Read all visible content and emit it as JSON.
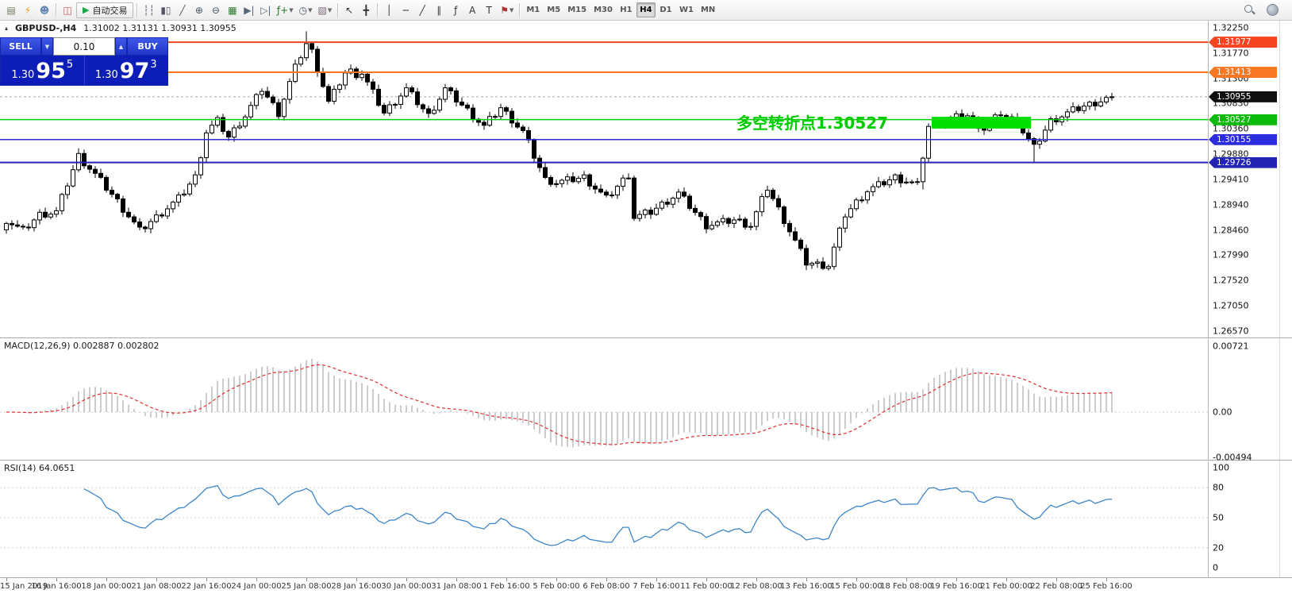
{
  "toolbar": {
    "buttons": [
      {
        "name": "new-order",
        "glyph": "▤",
        "color": "#6b7b5a"
      },
      {
        "name": "metaeditor",
        "glyph": "⚡",
        "color": "#e8a013"
      },
      {
        "name": "profiles",
        "glyph": "☻",
        "color": "#6a87b8"
      },
      {
        "sep": true
      },
      {
        "name": "market-watch",
        "glyph": "◫",
        "color": "#c05050"
      },
      {
        "name": "autotrading",
        "glyph": "▶",
        "label": "自动交易",
        "color": "#18a848"
      },
      {
        "sep": true
      },
      {
        "name": "chart-bars",
        "glyph": "┆┆",
        "color": "#556"
      },
      {
        "name": "chart-candles",
        "glyph": "▮▯",
        "color": "#556"
      },
      {
        "name": "chart-line",
        "glyph": "╱",
        "color": "#556"
      },
      {
        "name": "zoom-in",
        "glyph": "⊕",
        "color": "#456"
      },
      {
        "name": "zoom-out",
        "glyph": "⊖",
        "color": "#456"
      },
      {
        "name": "tile-windows",
        "glyph": "▦",
        "color": "#2f7a2f"
      },
      {
        "name": "auto-scroll",
        "glyph": "▶|",
        "color": "#567"
      },
      {
        "name": "chart-shift",
        "glyph": "▷|",
        "color": "#567"
      },
      {
        "name": "indicators",
        "glyph": "ƒ+",
        "color": "#1a7a1a",
        "caret": true
      },
      {
        "name": "periods",
        "glyph": "◷",
        "color": "#456",
        "caret": true
      },
      {
        "name": "templates",
        "glyph": "▧",
        "color": "#767",
        "caret": true
      },
      {
        "sep": true
      },
      {
        "name": "cursor",
        "glyph": "↖",
        "color": "#333"
      },
      {
        "name": "crosshair",
        "glyph": "╋",
        "color": "#333"
      },
      {
        "sep": true
      },
      {
        "name": "vertical-line",
        "glyph": "│",
        "color": "#333"
      },
      {
        "name": "horizontal-line",
        "glyph": "─",
        "color": "#333"
      },
      {
        "name": "trendline",
        "glyph": "╱",
        "color": "#333"
      },
      {
        "name": "equidistant-channel",
        "glyph": "∥",
        "color": "#333"
      },
      {
        "name": "fibonacci",
        "glyph": "ƒ",
        "color": "#333"
      },
      {
        "name": "text",
        "glyph": "A",
        "color": "#333"
      },
      {
        "name": "text-label",
        "glyph": "T",
        "color": "#333"
      },
      {
        "name": "arrows",
        "glyph": "⚑",
        "color": "#a33",
        "caret": true
      },
      {
        "sep": true
      }
    ],
    "timeframes": [
      "M1",
      "M5",
      "M15",
      "M30",
      "H1",
      "H4",
      "D1",
      "W1",
      "MN"
    ],
    "active_timeframe": "H4"
  },
  "chart_header": {
    "symbol": "GBPUSD-,H4",
    "ohlc": "1.31002 1.31131 1.30931 1.30955",
    "toggle_icon": "▴"
  },
  "trade_panel": {
    "sell_label": "SELL",
    "buy_label": "BUY",
    "volume": "0.10",
    "step_down_icon": "▼",
    "step_up_icon": "▲",
    "sell_price": {
      "prefix": "1.30",
      "big": "95",
      "sup": "5"
    },
    "buy_price": {
      "prefix": "1.30",
      "big": "97",
      "sup": "3"
    }
  },
  "annotation": {
    "text": "多空转折点1.30527",
    "color": "#00cc00"
  },
  "price_axis": {
    "labels": [
      "1.32250",
      "1.31770",
      "1.31300",
      "1.30830",
      "1.30360",
      "1.29880",
      "1.29410",
      "1.28940",
      "1.28460",
      "1.27990",
      "1.27520",
      "1.27050",
      "1.26570"
    ],
    "tags": [
      {
        "value": "1.31977",
        "price": 1.31977,
        "bg": "#f44422"
      },
      {
        "value": "1.31413",
        "price": 1.31413,
        "bg": "#f87722"
      },
      {
        "value": "1.30955",
        "price": 1.30955,
        "bg": "#101010"
      },
      {
        "value": "1.30527",
        "price": 1.30527,
        "bg": "#0cbb0c"
      },
      {
        "value": "1.30155",
        "price": 1.30155,
        "bg": "#2b2bdf"
      },
      {
        "value": "1.29726",
        "price": 1.29726,
        "bg": "#2323b4"
      }
    ]
  },
  "macd": {
    "label": "MACD(12,26,9) 0.002887 0.002802",
    "params": [
      12,
      26,
      9
    ],
    "values": [
      "0.002887",
      "0.002802"
    ],
    "axis": [
      {
        "value": "0.00721",
        "v": 0.00721
      },
      {
        "value": "0.00",
        "v": 0
      },
      {
        "value": "-0.00494",
        "v": -0.00494
      }
    ],
    "hist_color": "#b6b6b6",
    "signal_color": "#e03030"
  },
  "rsi": {
    "label": "RSI(14) 64.0651",
    "period": 14,
    "value": "64.0651",
    "axis": [
      {
        "value": "100",
        "v": 100
      },
      {
        "value": "80",
        "v": 80
      },
      {
        "value": "50",
        "v": 50
      },
      {
        "value": "20",
        "v": 20
      },
      {
        "value": "0",
        "v": 0
      }
    ],
    "levels": [
      80,
      50,
      20
    ],
    "line_color": "#3d85c8"
  },
  "chart_data": {
    "type": "candlestick",
    "symbol": "GBPUSD",
    "timeframe": "H4",
    "price_top": 1.3235,
    "price_bottom": 1.2648,
    "closes": [
      1.2865,
      1.2858,
      1.2851,
      1.2845,
      1.2855,
      1.2865,
      1.2875,
      1.2877,
      1.2878,
      1.288,
      1.2906,
      1.2933,
      1.2959,
      1.2985,
      1.2973,
      1.2962,
      1.295,
      1.2938,
      1.2925,
      1.2913,
      1.29,
      1.2886,
      1.2873,
      1.2859,
      1.2845,
      1.2853,
      1.2862,
      1.287,
      1.2879,
      1.2888,
      1.2896,
      1.2905,
      1.2918,
      1.2932,
      1.2945,
      1.2988,
      1.303,
      1.304,
      1.305,
      1.3035,
      1.302,
      1.3033,
      1.3047,
      1.306,
      1.3077,
      1.3093,
      1.311,
      1.3095,
      1.308,
      1.3065,
      1.3093,
      1.3122,
      1.315,
      1.3173,
      1.3195,
      1.318,
      1.3148,
      1.3117,
      1.3085,
      1.3103,
      1.3122,
      1.314,
      1.3143,
      1.3138,
      1.314,
      1.3121,
      1.3103,
      1.3084,
      1.3065,
      1.3076,
      1.3088,
      1.3099,
      1.311,
      1.3098,
      1.3085,
      1.3073,
      1.306,
      1.3077,
      1.3093,
      1.311,
      1.31,
      1.309,
      1.308,
      1.307,
      1.306,
      1.305,
      1.304,
      1.3052,
      1.3063,
      1.3075,
      1.3064,
      1.3053,
      1.3041,
      1.303,
      1.3008,
      1.2985,
      1.2963,
      1.294,
      1.2938,
      1.2935,
      1.2937,
      1.2939,
      1.2941,
      1.2943,
      1.2945,
      1.2935,
      1.2925,
      1.2915,
      1.2905,
      1.2916,
      1.2928,
      1.2939,
      1.295,
      1.287,
      1.2873,
      1.2877,
      1.288,
      1.2887,
      1.2894,
      1.2901,
      1.2908,
      1.2915,
      1.2903,
      1.2891,
      1.2879,
      1.2867,
      1.2855,
      1.2857,
      1.2859,
      1.2861,
      1.2863,
      1.2865,
      1.2862,
      1.2858,
      1.2855,
      1.2878,
      1.2902,
      1.2925,
      1.2905,
      1.2885,
      1.2865,
      1.2845,
      1.2825,
      1.2805,
      1.2785,
      1.2784,
      1.2782,
      1.2781,
      1.278,
      1.2812,
      1.2843,
      1.2875,
      1.2886,
      1.2898,
      1.2909,
      1.292,
      1.2925,
      1.293,
      1.2935,
      1.294,
      1.2945,
      1.2941,
      1.2938,
      1.2934,
      1.293,
      1.2985,
      1.304,
      1.3044,
      1.3048,
      1.3051,
      1.3055,
      1.3057,
      1.3058,
      1.306,
      1.3052,
      1.3043,
      1.3035,
      1.3045,
      1.3055,
      1.3065,
      1.3058,
      1.3052,
      1.3045,
      1.303,
      1.3015,
      1.3,
      1.3017,
      1.3033,
      1.305,
      1.3055,
      1.306,
      1.3065,
      1.307,
      1.3074,
      1.3078,
      1.3081,
      1.3085,
      1.3088,
      1.3092,
      1.30955
    ],
    "wick_overrides": {
      "13": {
        "high": 1.2999
      },
      "54": {
        "high": 1.3218
      },
      "144": {
        "low": 1.2771
      },
      "165": {
        "low": 1.2922
      },
      "185": {
        "low": 1.29726
      }
    },
    "levels": [
      {
        "price": 1.30955,
        "color": "#a8a8a8",
        "width": 1,
        "style": "dashed"
      },
      {
        "price": 1.31977,
        "color": "#f44422",
        "width": 2,
        "style": "solid"
      },
      {
        "price": 1.31413,
        "color": "#f87722",
        "width": 2,
        "style": "solid"
      },
      {
        "price": 1.30527,
        "color": "#00cc00",
        "width": 1.5,
        "style": "solid"
      },
      {
        "price": 1.30155,
        "color": "#2b2bdf",
        "width": 1.5,
        "style": "solid"
      },
      {
        "price": 1.29726,
        "color": "#2323b4",
        "width": 2,
        "style": "solid"
      }
    ],
    "highlight_box": {
      "start_index": 167,
      "end_index": 184,
      "price_top": 1.3058,
      "price_bottom": 1.3036,
      "color": "#00dd00"
    },
    "x_labels": [
      "15 Jan 2019",
      "16 Jan 16:00",
      "18 Jan 00:00",
      "21 Jan 08:00",
      "22 Jan 16:00",
      "24 Jan 00:00",
      "25 Jan 08:00",
      "28 Jan 16:00",
      "30 Jan 00:00",
      "31 Jan 08:00",
      "1 Feb 16:00",
      "5 Feb 00:00",
      "6 Feb 08:00",
      "7 Feb 16:00",
      "11 Feb 00:00",
      "12 Feb 08:00",
      "13 Feb 16:00",
      "15 Feb 00:00",
      "18 Feb 08:00",
      "19 Feb 16:00",
      "21 Feb 00:00",
      "22 Feb 08:00",
      "25 Feb 16:00"
    ],
    "bars_per_label": 9
  }
}
